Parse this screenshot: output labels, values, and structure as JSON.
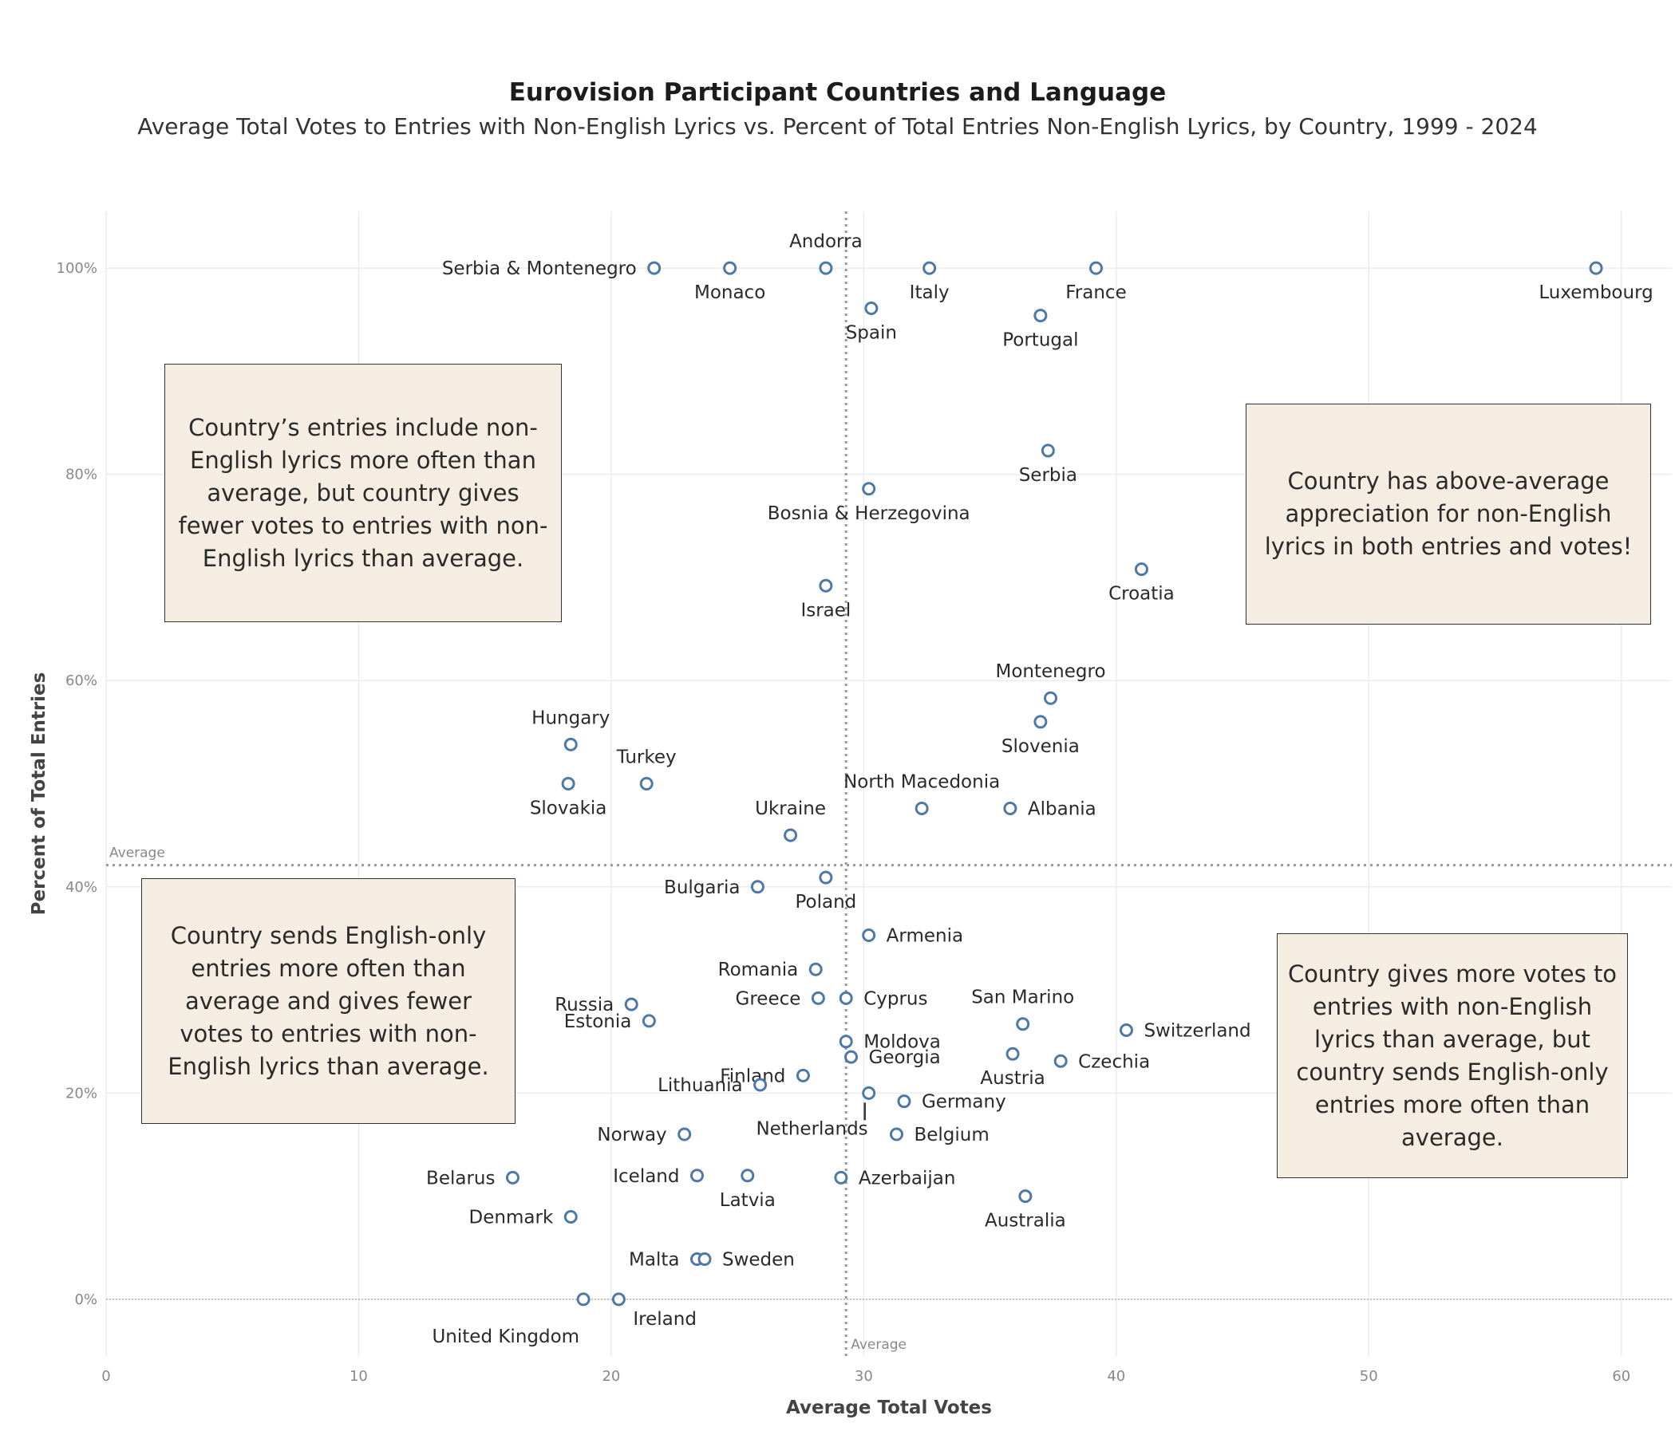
{
  "title": "Eurovision Participant Countries and Language",
  "subtitle": "Average Total Votes to Entries with Non-English Lyrics vs. Percent of Total Entries Non-English Lyrics, by Country, 1999 - 2024",
  "notes": {
    "top_left": "Country’s entries include non-English lyrics more often than average, but country gives fewer votes to entries with non-English lyrics than average.",
    "top_right": "Country has above-average appreciation for non-English lyrics in both entries and votes!",
    "bottom_left": "Country sends English-only entries more often than average and gives fewer votes to entries with non-English lyrics than average.",
    "bottom_right": "Country gives more votes to entries with non-English lyrics than average, but country sends English-only entries more often than average."
  },
  "chart_data": {
    "type": "scatter",
    "xlabel": "Average Total Votes",
    "ylabel": "Percent of Total Entries",
    "xlim": [
      0,
      62
    ],
    "ylim": [
      -5.5,
      105.5
    ],
    "xticks": [
      0,
      10,
      20,
      30,
      40,
      50,
      60
    ],
    "yticks": [
      0,
      20,
      40,
      60,
      80,
      100
    ],
    "ytick_suffix": "%",
    "grid": true,
    "marker_color": "#4e79a7",
    "reference_lines": {
      "x_average": 29.3,
      "y_average": 42.1,
      "x_label": "Average",
      "y_label": "Average"
    },
    "points": [
      {
        "name": "Serbia & Montenegro",
        "x": 21.7,
        "y": 100,
        "label": "left"
      },
      {
        "name": "Monaco",
        "x": 24.7,
        "y": 100,
        "label": "below"
      },
      {
        "name": "Andorra",
        "x": 28.5,
        "y": 100,
        "label": "above"
      },
      {
        "name": "Italy",
        "x": 32.6,
        "y": 100,
        "label": "below"
      },
      {
        "name": "France",
        "x": 39.2,
        "y": 100,
        "label": "below"
      },
      {
        "name": "Luxembourg",
        "x": 59.0,
        "y": 100,
        "label": "below"
      },
      {
        "name": "Spain",
        "x": 30.3,
        "y": 96.1,
        "label": "below"
      },
      {
        "name": "Portugal",
        "x": 37.0,
        "y": 95.4,
        "label": "below"
      },
      {
        "name": "Serbia",
        "x": 37.3,
        "y": 82.3,
        "label": "below"
      },
      {
        "name": "Bosnia & Herzegovina",
        "x": 30.2,
        "y": 78.6,
        "label": "below"
      },
      {
        "name": "Croatia",
        "x": 41.0,
        "y": 70.8,
        "label": "below"
      },
      {
        "name": "Israel",
        "x": 28.5,
        "y": 69.2,
        "label": "below"
      },
      {
        "name": "Montenegro",
        "x": 37.4,
        "y": 58.3,
        "label": "above"
      },
      {
        "name": "Slovenia",
        "x": 37.0,
        "y": 56.0,
        "label": "below"
      },
      {
        "name": "Hungary",
        "x": 18.4,
        "y": 53.8,
        "label": "above"
      },
      {
        "name": "Slovakia",
        "x": 18.3,
        "y": 50.0,
        "label": "below"
      },
      {
        "name": "Turkey",
        "x": 21.4,
        "y": 50.0,
        "label": "above"
      },
      {
        "name": "North Macedonia",
        "x": 32.3,
        "y": 47.6,
        "label": "above"
      },
      {
        "name": "Albania",
        "x": 35.8,
        "y": 47.6,
        "label": "right"
      },
      {
        "name": "Ukraine",
        "x": 27.1,
        "y": 45.0,
        "label": "above"
      },
      {
        "name": "Bulgaria",
        "x": 25.8,
        "y": 40.0,
        "label": "left"
      },
      {
        "name": "Poland",
        "x": 28.5,
        "y": 40.9,
        "label": "below"
      },
      {
        "name": "Armenia",
        "x": 30.2,
        "y": 35.3,
        "label": "right"
      },
      {
        "name": "Romania",
        "x": 28.1,
        "y": 32.0,
        "label": "left"
      },
      {
        "name": "Greece",
        "x": 28.2,
        "y": 29.2,
        "label": "left"
      },
      {
        "name": "Cyprus",
        "x": 29.3,
        "y": 29.2,
        "label": "right"
      },
      {
        "name": "Russia",
        "x": 20.8,
        "y": 28.6,
        "label": "left"
      },
      {
        "name": "Estonia",
        "x": 21.5,
        "y": 27.0,
        "label": "left"
      },
      {
        "name": "San Marino",
        "x": 36.3,
        "y": 26.7,
        "label": "above"
      },
      {
        "name": "Switzerland",
        "x": 40.4,
        "y": 26.1,
        "label": "right"
      },
      {
        "name": "Moldova",
        "x": 29.3,
        "y": 25.0,
        "label": "right"
      },
      {
        "name": "Georgia",
        "x": 29.5,
        "y": 23.5,
        "label": "right"
      },
      {
        "name": "Austria",
        "x": 35.9,
        "y": 23.8,
        "label": "below"
      },
      {
        "name": "Czechia",
        "x": 37.8,
        "y": 23.1,
        "label": "right"
      },
      {
        "name": "Finland",
        "x": 27.6,
        "y": 21.7,
        "label": "left"
      },
      {
        "name": "Lithuania",
        "x": 25.9,
        "y": 20.8,
        "label": "left"
      },
      {
        "name": "Netherlands",
        "x": 30.2,
        "y": 20.0,
        "label": "below-left"
      },
      {
        "name": "Germany",
        "x": 31.6,
        "y": 19.2,
        "label": "right"
      },
      {
        "name": "Norway",
        "x": 22.9,
        "y": 16.0,
        "label": "left"
      },
      {
        "name": "Belgium",
        "x": 31.3,
        "y": 16.0,
        "label": "right"
      },
      {
        "name": "Belarus",
        "x": 16.1,
        "y": 11.8,
        "label": "left"
      },
      {
        "name": "Iceland",
        "x": 23.4,
        "y": 12.0,
        "label": "left"
      },
      {
        "name": "Latvia",
        "x": 25.4,
        "y": 12.0,
        "label": "below"
      },
      {
        "name": "Azerbaijan",
        "x": 29.1,
        "y": 11.8,
        "label": "right"
      },
      {
        "name": "Australia",
        "x": 36.4,
        "y": 10.0,
        "label": "below"
      },
      {
        "name": "Denmark",
        "x": 18.4,
        "y": 8.0,
        "label": "left"
      },
      {
        "name": "Malta",
        "x": 23.4,
        "y": 3.9,
        "label": "left"
      },
      {
        "name": "Sweden",
        "x": 23.7,
        "y": 3.9,
        "label": "right"
      },
      {
        "name": "United Kingdom",
        "x": 18.9,
        "y": 0.0,
        "label": "below-left"
      },
      {
        "name": "Ireland",
        "x": 20.3,
        "y": 0.0,
        "label": "below-right"
      }
    ]
  }
}
